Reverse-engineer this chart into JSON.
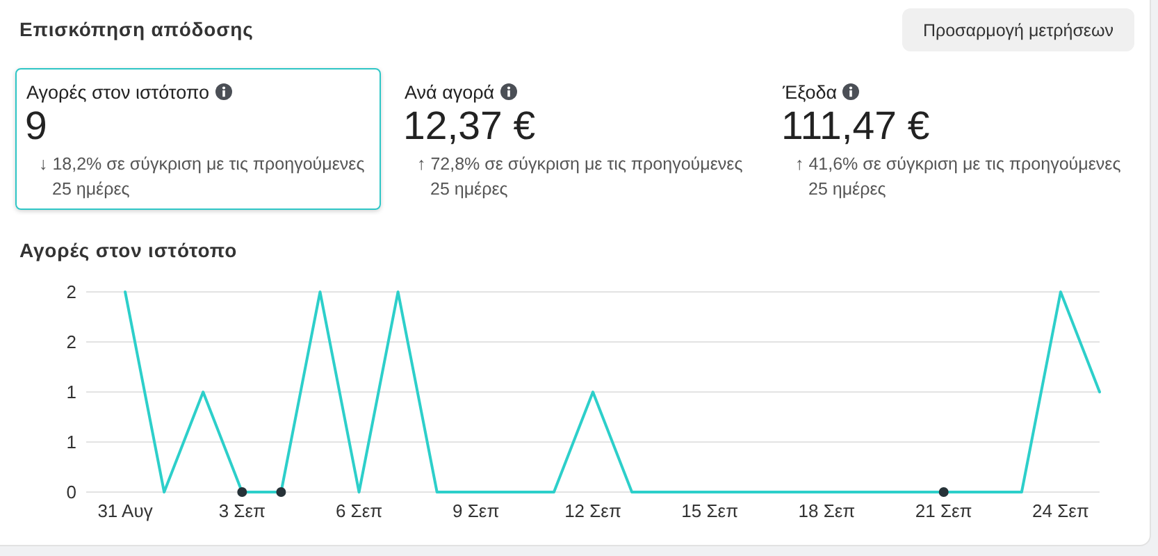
{
  "chart_data": [
    {
      "type": "other",
      "title": "Επισκόπηση απόδοσης",
      "categories": [
        "Αγορές στον ιστότοπο",
        "Ανά αγορά",
        "Έξοδα"
      ],
      "value_labels": [
        "9",
        "12,37 €",
        "111,47 €"
      ],
      "annotations": [
        "Προσαρμογή μετρήσεων",
        "↓ 18,2% σε σύγκριση με τις προηγούμενες 25 ημέρες",
        "↑ 72,8% σε σύγκριση με τις προηγούμενες 25 ημέρες",
        "↑ 41,6% σε σύγκριση με τις προηγούμενες 25 ημέρες"
      ]
    },
    {
      "type": "line",
      "title": "Αγορές στον ιστότοπο",
      "x": [
        "--08-31",
        "--09-01",
        "--09-02",
        "--09-03",
        "--09-04",
        "--09-05",
        "--09-06",
        "--09-07",
        "--09-08",
        "--09-09",
        "--09-10",
        "--09-11",
        "--09-12",
        "--09-13",
        "--09-14",
        "--09-15",
        "--09-16",
        "--09-17",
        "--09-18",
        "--09-19",
        "--09-20",
        "--09-21",
        "--09-22",
        "--09-23",
        "--09-24",
        "--09-25"
      ],
      "series": [
        {
          "color": "#2dcfca",
          "values": [
            2,
            0,
            1,
            0,
            0,
            2,
            0,
            2,
            0,
            0,
            0,
            0,
            1,
            0,
            0,
            0,
            0,
            0,
            0,
            0,
            0,
            0,
            0,
            0,
            2,
            1
          ]
        },
        {
          "type": "scatter",
          "color": "#263238",
          "x": [
            "--09-03",
            "--09-04",
            "--09-21"
          ],
          "values": [
            0,
            0,
            0
          ]
        }
      ],
      "xlim": [
        "--08-30",
        "--09-25"
      ],
      "xticks": [
        {
          "value": "--08-31",
          "label": "31 Αυγ"
        },
        {
          "value": "--09-03",
          "label": "3 Σεπ"
        },
        {
          "value": "--09-06",
          "label": "6 Σεπ"
        },
        {
          "value": "--09-09",
          "label": "9 Σεπ"
        },
        {
          "value": "--09-12",
          "label": "12 Σεπ"
        },
        {
          "value": "--09-15",
          "label": "15 Σεπ"
        },
        {
          "value": "--09-18",
          "label": "18 Σεπ"
        },
        {
          "value": "--09-21",
          "label": "21 Σεπ"
        },
        {
          "value": "--09-24",
          "label": "24 Σεπ"
        }
      ],
      "ylim": [
        0,
        2
      ],
      "yticks": [
        0,
        {
          "value": 0.5,
          "label": "1"
        },
        1,
        {
          "value": 1.5,
          "label": "2"
        },
        2
      ],
      "grid": "y"
    }
  ]
}
